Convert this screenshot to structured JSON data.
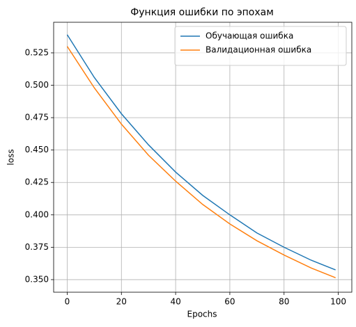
{
  "chart_data": {
    "type": "line",
    "title": "Функция ошибки по эпохам",
    "x_label": "Epochs",
    "y_label": "loss",
    "x": [
      0,
      10,
      20,
      30,
      40,
      50,
      60,
      70,
      80,
      90,
      99
    ],
    "series": [
      {
        "name": "Обучающая ошибка",
        "color": "#1f77b4",
        "values": [
          0.539,
          0.506,
          0.478,
          0.454,
          0.433,
          0.415,
          0.4,
          0.386,
          0.375,
          0.365,
          0.3575
        ]
      },
      {
        "name": "Валидационная ошибка",
        "color": "#ff7f0e",
        "values": [
          0.53,
          0.498,
          0.47,
          0.446,
          0.426,
          0.408,
          0.393,
          0.38,
          0.369,
          0.359,
          0.3515
        ]
      }
    ],
    "xlim": [
      -5,
      105
    ],
    "xticks": [
      0,
      20,
      40,
      60,
      80,
      100
    ],
    "ylim": [
      0.3403,
      0.5486
    ],
    "yticks": [
      {
        "value": 0.35,
        "label": "0.350"
      },
      {
        "value": 0.375,
        "label": "0.375"
      },
      {
        "value": 0.4,
        "label": "0.400"
      },
      {
        "value": 0.425,
        "label": "0.425"
      },
      {
        "value": 0.45,
        "label": "0.450"
      },
      {
        "value": 0.475,
        "label": "0.475"
      },
      {
        "value": 0.5,
        "label": "0.500"
      },
      {
        "value": 0.525,
        "label": "0.525"
      }
    ],
    "grid": true,
    "legend": "upper right"
  }
}
